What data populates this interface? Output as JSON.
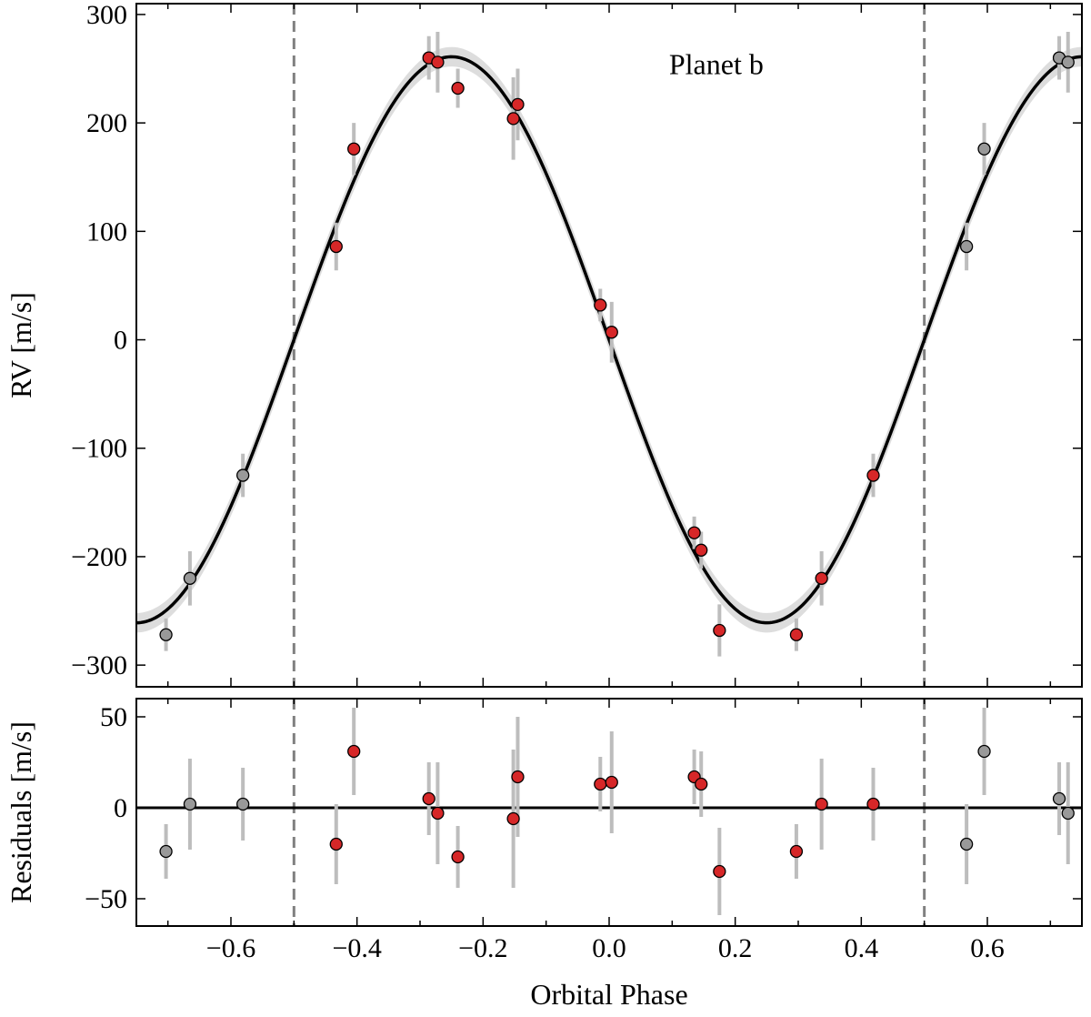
{
  "chart_data": [
    {
      "type": "scatter",
      "panel": "top",
      "annotation": "Planet b",
      "xlabel": "",
      "ylabel": "RV [m/s]",
      "xlim": [
        -0.75,
        0.75
      ],
      "ylim": [
        -320,
        310
      ],
      "yticks": [
        -300,
        -200,
        -100,
        0,
        100,
        200,
        300
      ],
      "ytick_labels": [
        "−300",
        "−200",
        "−100",
        "0",
        "100",
        "200",
        "300"
      ],
      "grid": false,
      "vlines": [
        -0.5,
        0.5
      ],
      "model": {
        "kind": "sinusoid",
        "amplitude": 261,
        "phase_of_peak": -0.25,
        "band_halfwidth": 9
      },
      "points": [
        {
          "x": -0.286,
          "y": 260,
          "err": 20,
          "color": "red"
        },
        {
          "x": -0.272,
          "y": 256,
          "err": 28,
          "color": "red"
        },
        {
          "x": -0.24,
          "y": 232,
          "err": 18,
          "color": "red"
        },
        {
          "x": -0.152,
          "y": 204,
          "err": 38,
          "color": "red"
        },
        {
          "x": -0.145,
          "y": 217,
          "err": 33,
          "color": "red"
        },
        {
          "x": -0.433,
          "y": 86,
          "err": 22,
          "color": "red"
        },
        {
          "x": -0.405,
          "y": 176,
          "err": 24,
          "color": "red"
        },
        {
          "x": -0.014,
          "y": 32,
          "err": 15,
          "color": "red"
        },
        {
          "x": 0.004,
          "y": 7,
          "err": 28,
          "color": "red"
        },
        {
          "x": 0.135,
          "y": -178,
          "err": 15,
          "color": "red"
        },
        {
          "x": 0.146,
          "y": -194,
          "err": 17,
          "color": "red"
        },
        {
          "x": 0.175,
          "y": -268,
          "err": 24,
          "color": "red"
        },
        {
          "x": 0.297,
          "y": -272,
          "err": 15,
          "color": "red"
        },
        {
          "x": 0.337,
          "y": -220,
          "err": 25,
          "color": "red"
        },
        {
          "x": 0.419,
          "y": -125,
          "err": 20,
          "color": "red"
        },
        {
          "x": -0.703,
          "y": -272,
          "err": 15,
          "color": "gray"
        },
        {
          "x": -0.665,
          "y": -220,
          "err": 25,
          "color": "gray"
        },
        {
          "x": -0.581,
          "y": -125,
          "err": 20,
          "color": "gray"
        },
        {
          "x": 0.567,
          "y": 86,
          "err": 22,
          "color": "gray"
        },
        {
          "x": 0.595,
          "y": 176,
          "err": 24,
          "color": "gray"
        },
        {
          "x": 0.714,
          "y": 260,
          "err": 20,
          "color": "gray"
        },
        {
          "x": 0.728,
          "y": 256,
          "err": 28,
          "color": "gray"
        }
      ]
    },
    {
      "type": "scatter",
      "panel": "bottom",
      "xlabel": "Orbital Phase",
      "ylabel": "Residuals [m/s]",
      "xlim": [
        -0.75,
        0.75
      ],
      "ylim": [
        -65,
        60
      ],
      "xticks": [
        -0.6,
        -0.4,
        -0.2,
        0.0,
        0.2,
        0.4,
        0.6
      ],
      "xtick_labels": [
        "−0.6",
        "−0.4",
        "−0.2",
        "0.0",
        "0.2",
        "0.4",
        "0.6"
      ],
      "yticks": [
        -50,
        0,
        50
      ],
      "ytick_labels": [
        "−50",
        "0",
        "50"
      ],
      "grid": false,
      "vlines": [
        -0.5,
        0.5
      ],
      "hline": 0,
      "points": [
        {
          "x": -0.286,
          "y": 5,
          "err": 20,
          "color": "red"
        },
        {
          "x": -0.272,
          "y": -3,
          "err": 28,
          "color": "red"
        },
        {
          "x": -0.24,
          "y": -27,
          "err": 17,
          "color": "red"
        },
        {
          "x": -0.152,
          "y": -6,
          "err": 38,
          "color": "red"
        },
        {
          "x": -0.145,
          "y": 17,
          "err": 33,
          "color": "red"
        },
        {
          "x": -0.433,
          "y": -20,
          "err": 22,
          "color": "red"
        },
        {
          "x": -0.405,
          "y": 31,
          "err": 24,
          "color": "red"
        },
        {
          "x": -0.014,
          "y": 13,
          "err": 15,
          "color": "red"
        },
        {
          "x": 0.004,
          "y": 14,
          "err": 28,
          "color": "red"
        },
        {
          "x": 0.135,
          "y": 17,
          "err": 15,
          "color": "red"
        },
        {
          "x": 0.146,
          "y": 13,
          "err": 18,
          "color": "red"
        },
        {
          "x": 0.175,
          "y": -35,
          "err": 24,
          "color": "red"
        },
        {
          "x": 0.297,
          "y": -24,
          "err": 15,
          "color": "red"
        },
        {
          "x": 0.337,
          "y": 2,
          "err": 25,
          "color": "red"
        },
        {
          "x": 0.419,
          "y": 2,
          "err": 20,
          "color": "red"
        },
        {
          "x": -0.703,
          "y": -24,
          "err": 15,
          "color": "gray"
        },
        {
          "x": -0.665,
          "y": 2,
          "err": 25,
          "color": "gray"
        },
        {
          "x": -0.581,
          "y": 2,
          "err": 20,
          "color": "gray"
        },
        {
          "x": 0.567,
          "y": -20,
          "err": 22,
          "color": "gray"
        },
        {
          "x": 0.595,
          "y": 31,
          "err": 24,
          "color": "gray"
        },
        {
          "x": 0.714,
          "y": 5,
          "err": 20,
          "color": "gray"
        },
        {
          "x": 0.728,
          "y": -3,
          "err": 28,
          "color": "gray"
        }
      ]
    }
  ],
  "colors": {
    "red_point": "#d62728",
    "gray_point": "#999999",
    "errorbar": "#bdbdbd",
    "model": "#000000",
    "model_band": "#dddddd",
    "vline": "#808080"
  }
}
